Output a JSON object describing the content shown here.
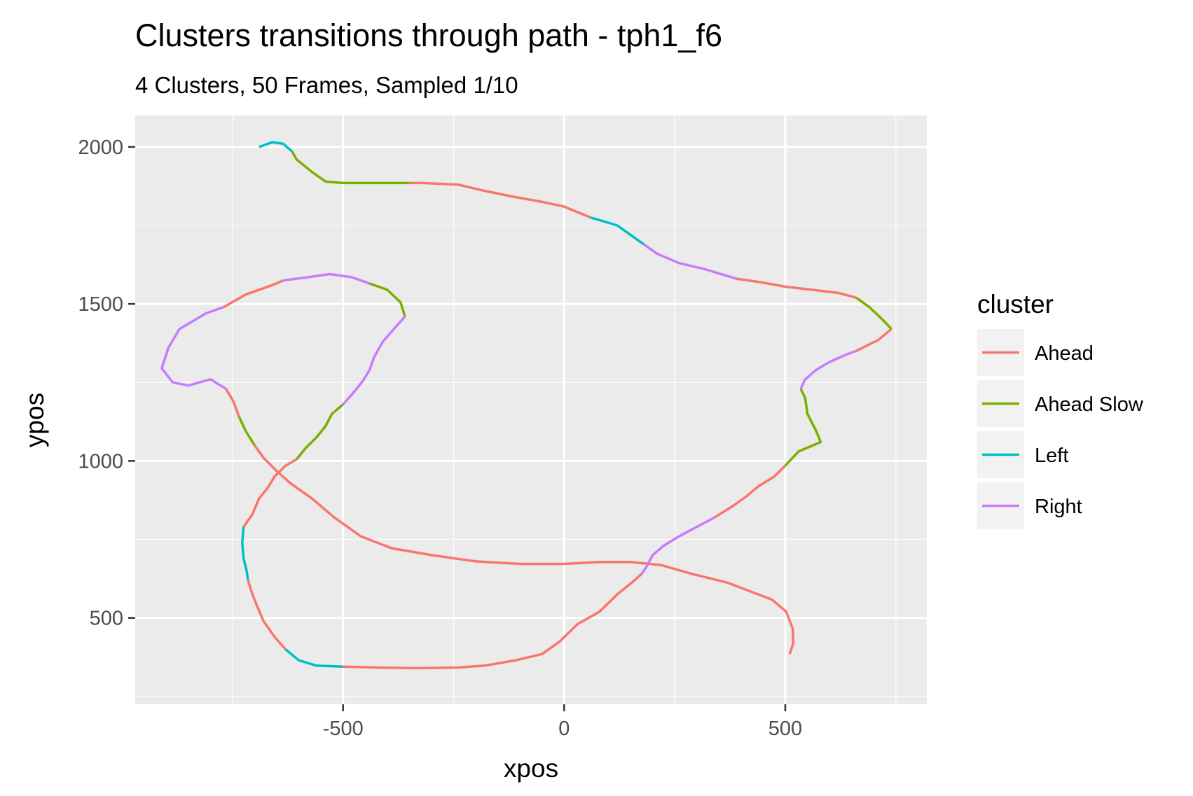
{
  "chart_data": {
    "type": "line",
    "title": "Clusters transitions through path - tph1_f6",
    "subtitle": "4 Clusters, 50 Frames, Sampled 1/10",
    "xlabel": "xpos",
    "ylabel": "ypos",
    "xlim": [
      -970,
      820
    ],
    "ylim": [
      225,
      2100
    ],
    "x_ticks": [
      -500,
      0,
      500
    ],
    "x_tick_labels": [
      "-500",
      "0",
      "500"
    ],
    "y_ticks": [
      500,
      1000,
      1500,
      2000
    ],
    "y_tick_labels": [
      "500",
      "1000",
      "1500",
      "2000"
    ],
    "grid": true,
    "legend": {
      "title": "cluster",
      "position": "right",
      "entries": [
        "Ahead",
        "Ahead Slow",
        "Left",
        "Right"
      ]
    },
    "colors": {
      "Ahead": "#F8766D",
      "Ahead Slow": "#7CAE00",
      "Left": "#00BFC4",
      "Right": "#C77CFF"
    },
    "segments": [
      {
        "cluster": "Ahead",
        "points": [
          [
            510,
            385
          ],
          [
            518,
            420
          ],
          [
            517,
            465
          ],
          [
            502,
            520
          ],
          [
            470,
            558
          ],
          [
            420,
            585
          ],
          [
            370,
            612
          ],
          [
            290,
            640
          ],
          [
            220,
            668
          ],
          [
            150,
            678
          ],
          [
            80,
            678
          ],
          [
            0,
            672
          ],
          [
            -100,
            672
          ],
          [
            -200,
            680
          ],
          [
            -300,
            700
          ],
          [
            -390,
            722
          ],
          [
            -460,
            760
          ],
          [
            -520,
            820
          ],
          [
            -570,
            880
          ],
          [
            -620,
            930
          ],
          [
            -650,
            968
          ],
          [
            -680,
            1010
          ],
          [
            -700,
            1050
          ]
        ]
      },
      {
        "cluster": "Ahead Slow",
        "points": [
          [
            -700,
            1050
          ],
          [
            -720,
            1095
          ],
          [
            -735,
            1140
          ]
        ]
      },
      {
        "cluster": "Ahead",
        "points": [
          [
            -735,
            1140
          ],
          [
            -748,
            1190
          ],
          [
            -765,
            1230
          ]
        ]
      },
      {
        "cluster": "Right",
        "points": [
          [
            -765,
            1230
          ],
          [
            -800,
            1260
          ],
          [
            -850,
            1240
          ],
          [
            -885,
            1250
          ],
          [
            -910,
            1295
          ],
          [
            -895,
            1360
          ],
          [
            -870,
            1420
          ],
          [
            -810,
            1470
          ],
          [
            -770,
            1490
          ]
        ]
      },
      {
        "cluster": "Ahead",
        "points": [
          [
            -770,
            1490
          ],
          [
            -720,
            1530
          ],
          [
            -660,
            1560
          ],
          [
            -635,
            1575
          ]
        ]
      },
      {
        "cluster": "Right",
        "points": [
          [
            -635,
            1575
          ],
          [
            -580,
            1585
          ],
          [
            -530,
            1595
          ],
          [
            -480,
            1585
          ],
          [
            -440,
            1565
          ]
        ]
      },
      {
        "cluster": "Ahead Slow",
        "points": [
          [
            -440,
            1565
          ],
          [
            -400,
            1545
          ],
          [
            -370,
            1505
          ],
          [
            -360,
            1460
          ]
        ]
      },
      {
        "cluster": "Right",
        "points": [
          [
            -360,
            1460
          ],
          [
            -385,
            1420
          ],
          [
            -410,
            1380
          ],
          [
            -430,
            1330
          ],
          [
            -440,
            1290
          ],
          [
            -455,
            1255
          ],
          [
            -478,
            1215
          ],
          [
            -500,
            1180
          ]
        ]
      },
      {
        "cluster": "Ahead Slow",
        "points": [
          [
            -500,
            1180
          ],
          [
            -525,
            1150
          ],
          [
            -540,
            1110
          ],
          [
            -560,
            1075
          ],
          [
            -585,
            1040
          ],
          [
            -605,
            1005
          ]
        ]
      },
      {
        "cluster": "Ahead",
        "points": [
          [
            -605,
            1005
          ],
          [
            -630,
            985
          ],
          [
            -655,
            950
          ],
          [
            -670,
            915
          ],
          [
            -690,
            880
          ],
          [
            -705,
            830
          ],
          [
            -725,
            790
          ]
        ]
      },
      {
        "cluster": "Left",
        "points": [
          [
            -725,
            790
          ],
          [
            -728,
            740
          ],
          [
            -725,
            690
          ],
          [
            -718,
            650
          ],
          [
            -715,
            620
          ]
        ]
      },
      {
        "cluster": "Ahead",
        "points": [
          [
            -715,
            620
          ],
          [
            -705,
            575
          ],
          [
            -695,
            540
          ],
          [
            -680,
            490
          ],
          [
            -655,
            440
          ],
          [
            -630,
            400
          ]
        ]
      },
      {
        "cluster": "Left",
        "points": [
          [
            -630,
            400
          ],
          [
            -600,
            365
          ],
          [
            -560,
            348
          ],
          [
            -500,
            345
          ]
        ]
      },
      {
        "cluster": "Ahead",
        "points": [
          [
            -500,
            345
          ],
          [
            -420,
            342
          ],
          [
            -330,
            340
          ],
          [
            -240,
            342
          ],
          [
            -180,
            348
          ],
          [
            -110,
            365
          ],
          [
            -50,
            385
          ],
          [
            -10,
            425
          ],
          [
            30,
            480
          ],
          [
            80,
            520
          ],
          [
            120,
            575
          ],
          [
            155,
            615
          ],
          [
            175,
            640
          ]
        ]
      },
      {
        "cluster": "Right",
        "points": [
          [
            175,
            640
          ],
          [
            185,
            660
          ],
          [
            200,
            700
          ],
          [
            225,
            730
          ],
          [
            260,
            760
          ],
          [
            300,
            790
          ],
          [
            340,
            820
          ]
        ]
      },
      {
        "cluster": "Ahead",
        "points": [
          [
            340,
            820
          ],
          [
            380,
            855
          ],
          [
            410,
            885
          ],
          [
            440,
            920
          ],
          [
            475,
            950
          ],
          [
            500,
            985
          ]
        ]
      },
      {
        "cluster": "Ahead Slow",
        "points": [
          [
            500,
            985
          ],
          [
            530,
            1030
          ],
          [
            580,
            1060
          ],
          [
            570,
            1095
          ],
          [
            550,
            1150
          ],
          [
            545,
            1200
          ],
          [
            535,
            1230
          ]
        ]
      },
      {
        "cluster": "Right",
        "points": [
          [
            535,
            1230
          ],
          [
            545,
            1260
          ],
          [
            570,
            1290
          ],
          [
            600,
            1315
          ],
          [
            640,
            1340
          ],
          [
            660,
            1350
          ]
        ]
      },
      {
        "cluster": "Ahead",
        "points": [
          [
            660,
            1350
          ],
          [
            710,
            1385
          ],
          [
            740,
            1420
          ]
        ]
      },
      {
        "cluster": "Ahead Slow",
        "points": [
          [
            740,
            1420
          ],
          [
            720,
            1450
          ],
          [
            690,
            1490
          ],
          [
            660,
            1520
          ]
        ]
      },
      {
        "cluster": "Ahead",
        "points": [
          [
            660,
            1520
          ],
          [
            620,
            1535
          ],
          [
            560,
            1545
          ],
          [
            500,
            1555
          ],
          [
            440,
            1570
          ],
          [
            390,
            1580
          ]
        ]
      },
      {
        "cluster": "Right",
        "points": [
          [
            390,
            1580
          ],
          [
            320,
            1610
          ],
          [
            260,
            1630
          ],
          [
            210,
            1660
          ],
          [
            180,
            1690
          ]
        ]
      },
      {
        "cluster": "Left",
        "points": [
          [
            180,
            1690
          ],
          [
            150,
            1720
          ],
          [
            120,
            1750
          ],
          [
            85,
            1765
          ],
          [
            60,
            1775
          ]
        ]
      },
      {
        "cluster": "Ahead",
        "points": [
          [
            60,
            1775
          ],
          [
            0,
            1810
          ],
          [
            -50,
            1825
          ],
          [
            -110,
            1840
          ],
          [
            -180,
            1860
          ],
          [
            -240,
            1880
          ],
          [
            -320,
            1885
          ],
          [
            -350,
            1885
          ]
        ]
      },
      {
        "cluster": "Ahead Slow",
        "points": [
          [
            -350,
            1885
          ],
          [
            -420,
            1885
          ],
          [
            -500,
            1885
          ],
          [
            -540,
            1890
          ],
          [
            -570,
            1920
          ],
          [
            -605,
            1960
          ],
          [
            -615,
            1985
          ]
        ]
      },
      {
        "cluster": "Left",
        "points": [
          [
            -615,
            1985
          ],
          [
            -635,
            2010
          ],
          [
            -660,
            2015
          ],
          [
            -690,
            2000
          ]
        ]
      }
    ]
  }
}
